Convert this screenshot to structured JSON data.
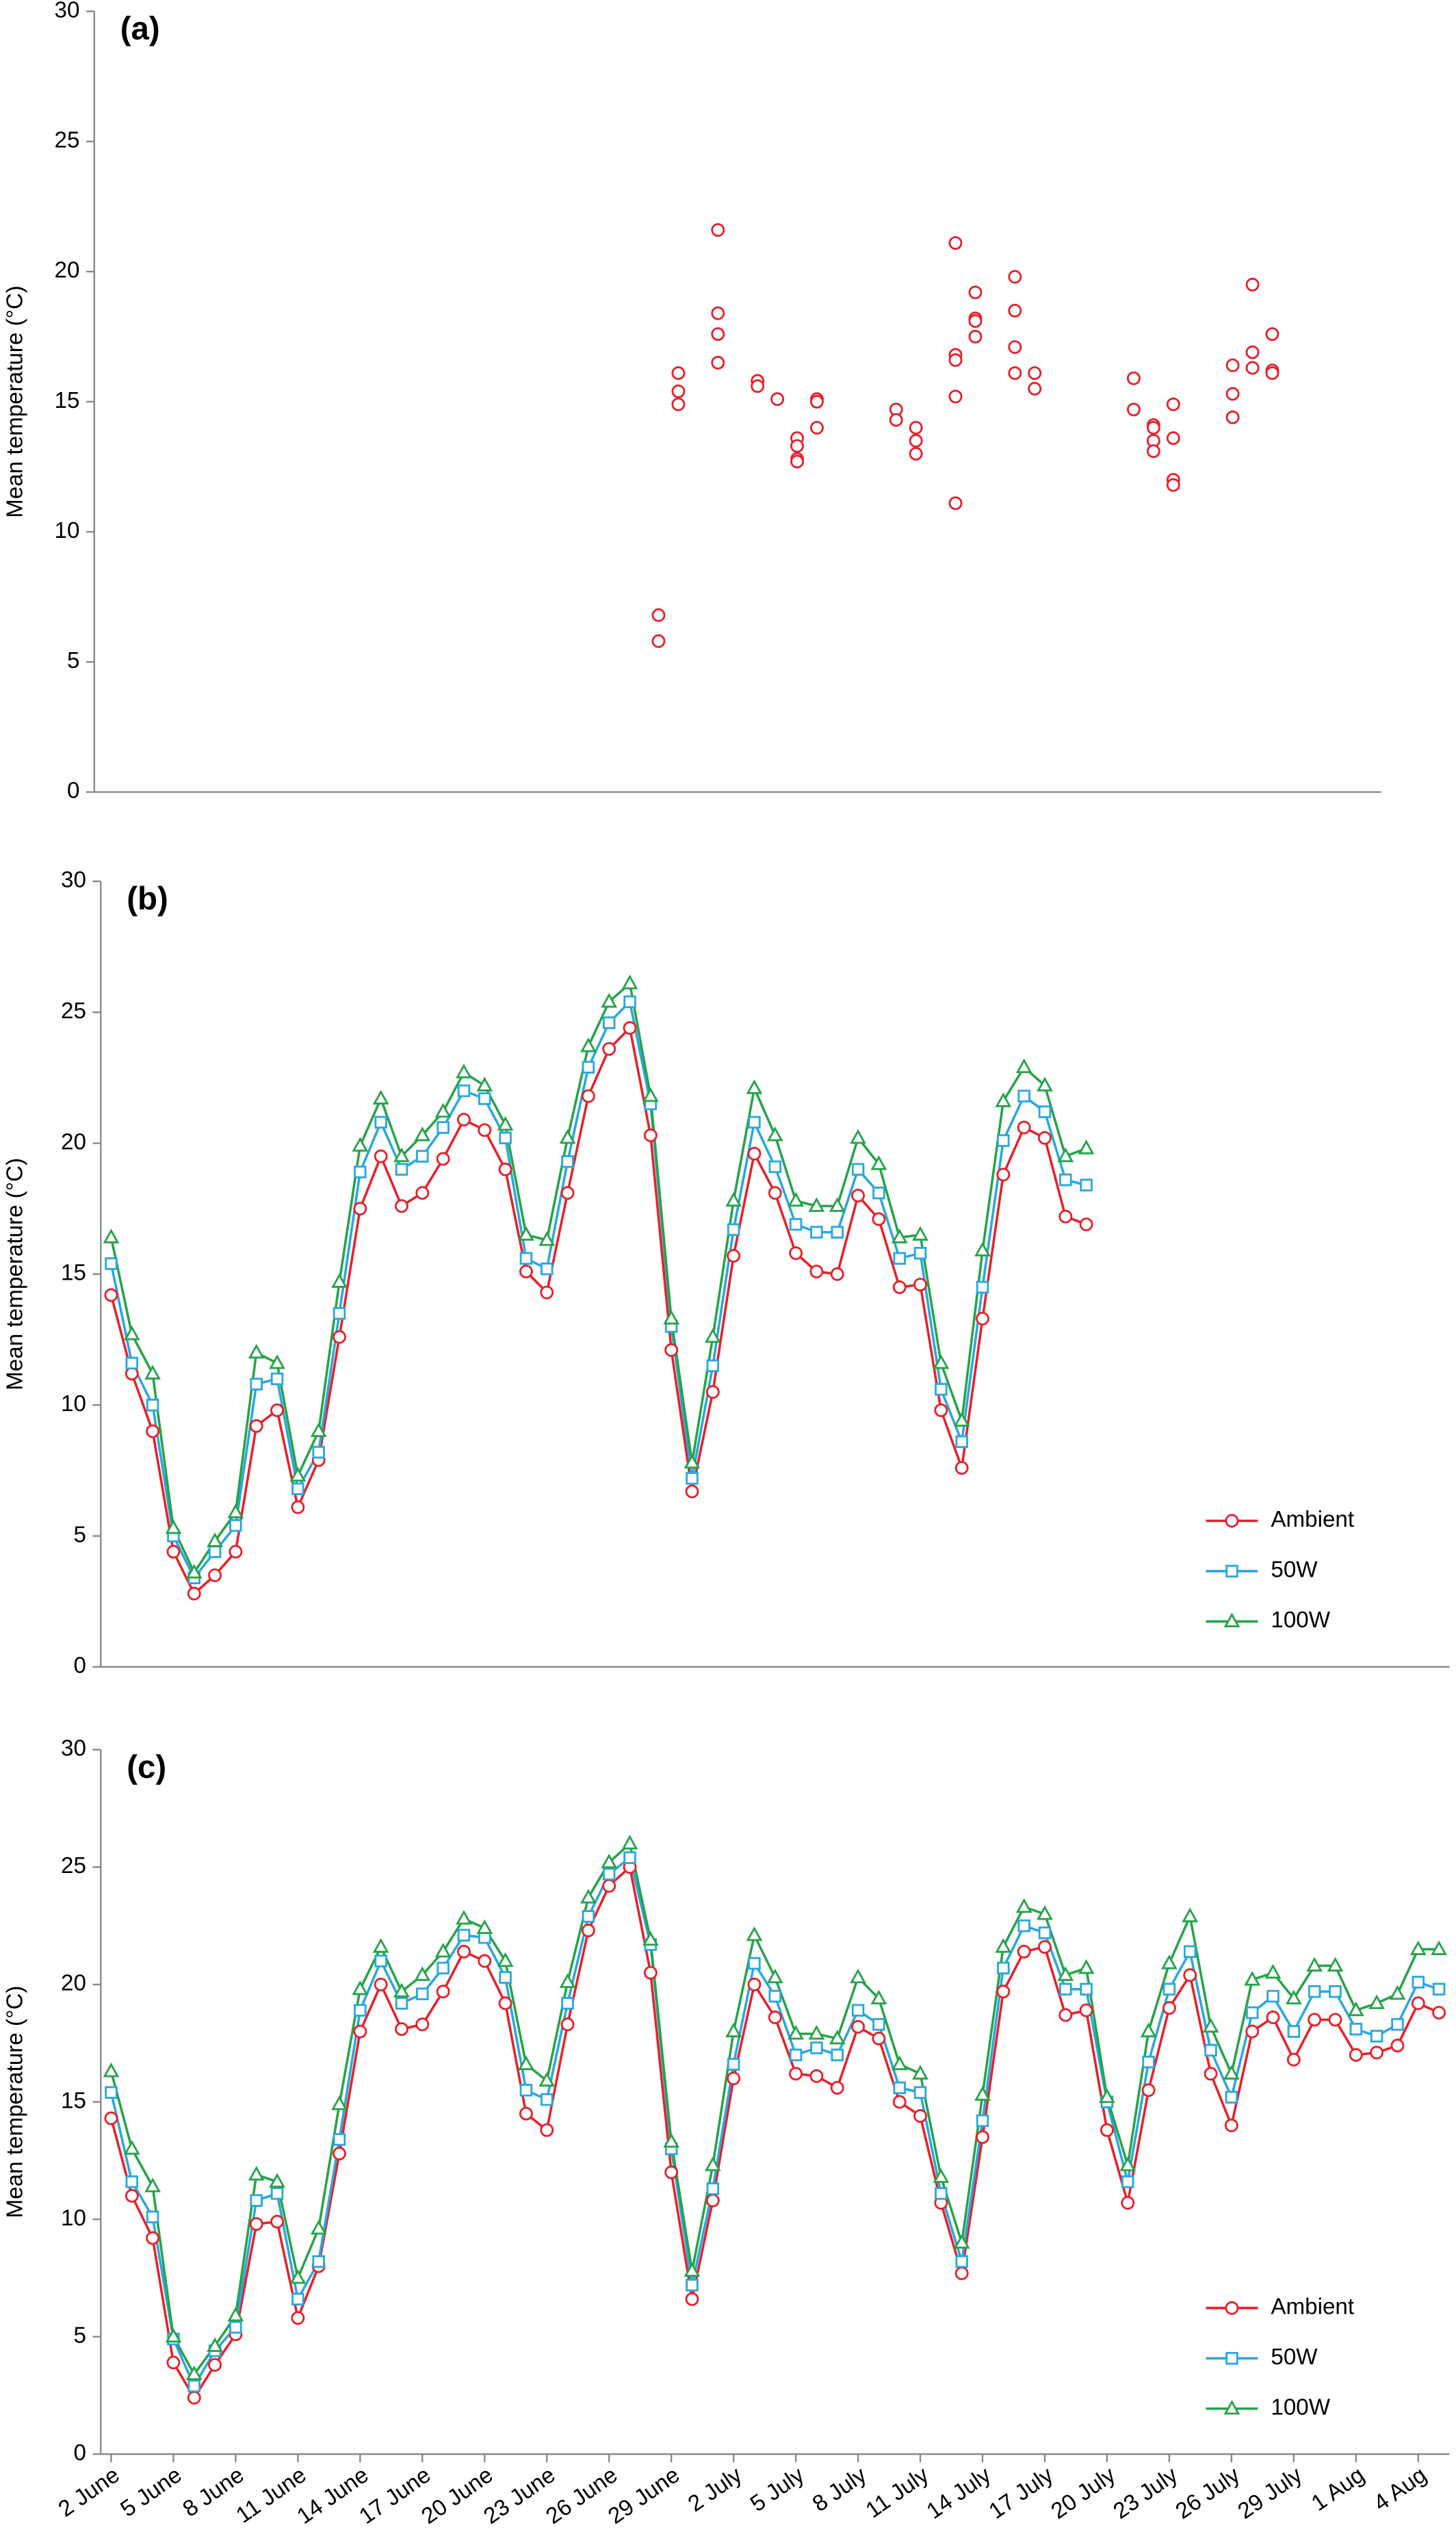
{
  "chart_data": [
    {
      "type": "scatter",
      "title": "(a)",
      "ylabel": "Mean temperature (°C)",
      "color": "#e8202a",
      "xlim": [
        -0.5,
        64.5
      ],
      "ylim": [
        0,
        30
      ],
      "yticks": [
        0,
        5,
        10,
        15,
        20,
        25,
        30
      ],
      "x": [
        28,
        28,
        29,
        29,
        29,
        31,
        31,
        31,
        31,
        33,
        33,
        34,
        35,
        35,
        35,
        35,
        36,
        36,
        36,
        40,
        40,
        41,
        41,
        41,
        43,
        43,
        43,
        43,
        43,
        44,
        44,
        44,
        44,
        46,
        46,
        46,
        46,
        47,
        47,
        52,
        52,
        53,
        53,
        53,
        53,
        54,
        54,
        54,
        54,
        57,
        57,
        57,
        58,
        58,
        58,
        59,
        59,
        59
      ],
      "values": [
        6.8,
        5.8,
        16.1,
        15.4,
        14.9,
        21.6,
        18.4,
        17.6,
        16.5,
        15.8,
        15.6,
        15.1,
        13.6,
        13.3,
        12.8,
        12.7,
        15.1,
        15.0,
        14.0,
        14.7,
        14.3,
        14.0,
        13.5,
        13.0,
        21.1,
        16.8,
        16.6,
        15.2,
        11.1,
        19.2,
        18.2,
        18.1,
        17.5,
        19.8,
        18.5,
        17.1,
        16.1,
        16.1,
        15.5,
        15.9,
        14.7,
        14.1,
        14.0,
        13.5,
        13.1,
        14.9,
        13.6,
        12.0,
        11.8,
        16.4,
        15.3,
        14.4,
        19.5,
        16.9,
        16.3,
        17.6,
        16.2,
        16.1
      ]
    },
    {
      "type": "line",
      "title": "(b)",
      "ylabel": "Mean temperature (°C)",
      "legend": "lower right",
      "ylim": [
        0,
        30
      ],
      "yticks": [
        0,
        5,
        10,
        15,
        20,
        25,
        30
      ],
      "series": [
        {
          "name": "Ambient",
          "color": "#e8202a",
          "marker": "circle",
          "values": [
            14.2,
            11.2,
            9.0,
            4.4,
            2.8,
            3.5,
            4.4,
            9.2,
            9.8,
            6.1,
            7.9,
            12.6,
            17.5,
            19.5,
            17.6,
            18.1,
            19.4,
            20.9,
            20.5,
            19.0,
            15.1,
            14.3,
            18.1,
            21.8,
            23.6,
            24.4,
            20.3,
            12.1,
            6.7,
            10.5,
            15.7,
            19.6,
            18.1,
            15.8,
            15.1,
            15.0,
            18.0,
            17.1,
            14.5,
            14.6,
            9.8,
            7.6,
            13.3,
            18.8,
            20.6,
            20.2,
            17.2,
            16.9
          ]
        },
        {
          "name": "50W",
          "color": "#2aa7df",
          "marker": "square",
          "values": [
            15.4,
            11.6,
            10.0,
            5.0,
            3.4,
            4.4,
            5.4,
            10.8,
            11.0,
            6.8,
            8.2,
            13.5,
            18.9,
            20.8,
            19.0,
            19.5,
            20.6,
            22.0,
            21.7,
            20.2,
            15.6,
            15.2,
            19.3,
            22.9,
            24.6,
            25.4,
            21.5,
            13.0,
            7.2,
            11.5,
            16.7,
            20.8,
            19.1,
            16.9,
            16.6,
            16.6,
            19.0,
            18.1,
            15.6,
            15.8,
            10.6,
            8.6,
            14.5,
            20.1,
            21.8,
            21.2,
            18.6,
            18.4
          ]
        },
        {
          "name": "100W",
          "color": "#26a34a",
          "marker": "triangle",
          "values": [
            16.4,
            12.7,
            11.2,
            5.3,
            3.6,
            4.8,
            5.9,
            12.0,
            11.6,
            7.3,
            9.0,
            14.7,
            19.9,
            21.7,
            19.5,
            20.3,
            21.2,
            22.7,
            22.2,
            20.7,
            16.5,
            16.3,
            20.2,
            23.7,
            25.4,
            26.1,
            21.8,
            13.3,
            7.8,
            12.6,
            17.8,
            22.1,
            20.3,
            17.8,
            17.6,
            17.6,
            20.2,
            19.2,
            16.4,
            16.5,
            11.6,
            9.4,
            15.9,
            21.6,
            22.9,
            22.2,
            19.5,
            19.8
          ]
        }
      ]
    },
    {
      "type": "line",
      "title": "(c)",
      "ylabel": "Mean temperature (°C)",
      "legend": "lower right",
      "ylim": [
        0,
        30
      ],
      "yticks": [
        0,
        5,
        10,
        15,
        20,
        25,
        30
      ],
      "categories": [
        "2 June",
        null,
        null,
        "5 June",
        null,
        null,
        "8 June",
        null,
        null,
        "11 June",
        null,
        null,
        "14 June",
        null,
        null,
        "17 June",
        null,
        null,
        "20 June",
        null,
        null,
        "23 June",
        null,
        null,
        "26 June",
        null,
        null,
        "29 June",
        null,
        null,
        "2 July",
        null,
        null,
        "5 July",
        null,
        null,
        "8 July",
        null,
        null,
        "11 July",
        null,
        null,
        "14 July",
        null,
        null,
        "17 July",
        null,
        null,
        "20 July",
        null,
        null,
        "23 July",
        null,
        null,
        "26 July",
        null,
        null,
        "29 July",
        null,
        null,
        "1 Aug",
        null,
        null,
        "4 Aug",
        null
      ],
      "series": [
        {
          "name": "Ambient",
          "color": "#e8202a",
          "marker": "circle",
          "values": [
            14.3,
            11.0,
            9.2,
            3.9,
            2.4,
            3.8,
            5.1,
            9.8,
            9.9,
            5.8,
            8.0,
            12.8,
            18.0,
            20.0,
            18.1,
            18.3,
            19.7,
            21.4,
            21.0,
            19.2,
            14.5,
            13.8,
            18.3,
            22.3,
            24.2,
            25.0,
            20.5,
            12.0,
            6.6,
            10.8,
            16.0,
            20.0,
            18.6,
            16.2,
            16.1,
            15.6,
            18.2,
            17.7,
            15.0,
            14.4,
            10.7,
            7.7,
            13.5,
            19.7,
            21.4,
            21.6,
            18.7,
            18.9,
            13.8,
            10.7,
            15.5,
            19.0,
            20.4,
            16.2,
            14.0,
            18.0,
            18.6,
            16.8,
            18.5,
            18.5,
            17.0,
            17.1,
            17.4,
            19.2,
            18.8
          ]
        },
        {
          "name": "50W",
          "color": "#2aa7df",
          "marker": "square",
          "values": [
            15.4,
            11.6,
            10.1,
            4.9,
            2.9,
            4.4,
            5.4,
            10.8,
            11.1,
            6.6,
            8.2,
            13.4,
            18.9,
            21.0,
            19.2,
            19.6,
            20.7,
            22.1,
            22.0,
            20.3,
            15.5,
            15.1,
            19.2,
            22.9,
            24.7,
            25.4,
            21.7,
            13.0,
            7.2,
            11.3,
            16.6,
            20.9,
            19.5,
            17.0,
            17.3,
            17.0,
            18.9,
            18.3,
            15.6,
            15.4,
            11.1,
            8.2,
            14.2,
            20.7,
            22.5,
            22.2,
            19.8,
            19.8,
            15.0,
            11.6,
            16.7,
            19.8,
            21.4,
            17.2,
            15.2,
            18.8,
            19.5,
            18.0,
            19.7,
            19.7,
            18.1,
            17.8,
            18.3,
            20.1,
            19.8
          ]
        },
        {
          "name": "100W",
          "color": "#26a34a",
          "marker": "triangle",
          "values": [
            16.3,
            13.0,
            11.4,
            5.0,
            3.4,
            4.6,
            5.9,
            11.9,
            11.6,
            7.5,
            9.6,
            14.9,
            19.8,
            21.6,
            19.7,
            20.4,
            21.4,
            22.8,
            22.4,
            21.0,
            16.6,
            15.9,
            20.1,
            23.7,
            25.2,
            26.0,
            21.9,
            13.3,
            7.8,
            12.3,
            18.0,
            22.1,
            20.3,
            17.9,
            17.9,
            17.7,
            20.3,
            19.4,
            16.6,
            16.2,
            11.8,
            9.0,
            15.3,
            21.6,
            23.3,
            23.0,
            20.4,
            20.7,
            15.2,
            12.3,
            18.0,
            20.9,
            22.9,
            18.2,
            16.2,
            20.2,
            20.5,
            19.4,
            20.8,
            20.8,
            18.9,
            19.2,
            19.6,
            21.5,
            21.5
          ]
        }
      ]
    }
  ]
}
